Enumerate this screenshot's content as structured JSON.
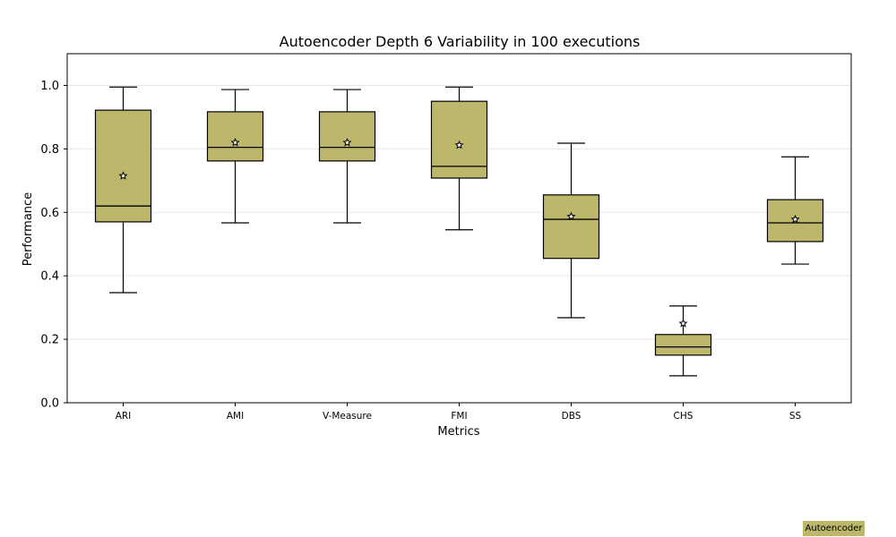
{
  "chart_data": {
    "type": "box",
    "title": "Autoencoder Depth 6 Variability in 100 executions",
    "xlabel": "Metrics",
    "ylabel": "Performance",
    "ylim": [
      0.0,
      1.1
    ],
    "yticks": [
      0.0,
      0.2,
      0.4,
      0.6,
      0.8,
      1.0
    ],
    "ytick_labels": [
      "0.0",
      "0.2",
      "0.4",
      "0.6",
      "0.8",
      "1.0"
    ],
    "grid": "horizontal",
    "categories": [
      "ARI",
      "AMI",
      "V-Measure",
      "FMI",
      "DBS",
      "CHS",
      "SS"
    ],
    "series": [
      {
        "name": "Autoencoder",
        "boxes": [
          {
            "label": "ARI",
            "whisker_low": 0.347,
            "q1": 0.57,
            "median": 0.62,
            "q3": 0.922,
            "whisker_high": 0.995,
            "mean": 0.715
          },
          {
            "label": "AMI",
            "whisker_low": 0.567,
            "q1": 0.762,
            "median": 0.805,
            "q3": 0.917,
            "whisker_high": 0.987,
            "mean": 0.82
          },
          {
            "label": "V-Measure",
            "whisker_low": 0.567,
            "q1": 0.762,
            "median": 0.805,
            "q3": 0.917,
            "whisker_high": 0.987,
            "mean": 0.82
          },
          {
            "label": "FMI",
            "whisker_low": 0.545,
            "q1": 0.708,
            "median": 0.745,
            "q3": 0.95,
            "whisker_high": 0.995,
            "mean": 0.812
          },
          {
            "label": "DBS",
            "whisker_low": 0.268,
            "q1": 0.455,
            "median": 0.578,
            "q3": 0.655,
            "whisker_high": 0.818,
            "mean": 0.587
          },
          {
            "label": "CHS",
            "whisker_low": 0.085,
            "q1": 0.15,
            "median": 0.176,
            "q3": 0.215,
            "whisker_high": 0.305,
            "mean": 0.25
          },
          {
            "label": "SS",
            "whisker_low": 0.437,
            "q1": 0.508,
            "median": 0.567,
            "q3": 0.64,
            "whisker_high": 0.775,
            "mean": 0.578
          }
        ]
      }
    ],
    "colors": {
      "box_fill": "#bdb76b",
      "edge": "#000000",
      "grid": "#e6e6e6"
    },
    "legend": {
      "label": "Autoencoder",
      "position": "bottom-right"
    }
  }
}
